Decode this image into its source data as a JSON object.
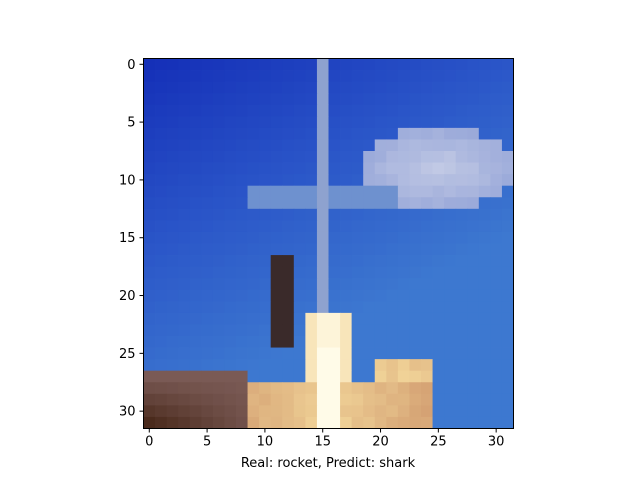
{
  "chart_data": {
    "type": "heatmap",
    "title": "",
    "xlabel": "Real: rocket, Predict: shark",
    "ylabel": "",
    "grid": false,
    "x_ticks": [
      0,
      5,
      10,
      15,
      20,
      25,
      30
    ],
    "y_ticks": [
      0,
      5,
      10,
      15,
      20,
      25,
      30
    ],
    "x_range": [
      -0.5,
      31.5
    ],
    "y_range": [
      -0.5,
      31.5
    ],
    "y_inverted": true,
    "image_grid": [
      32,
      32
    ],
    "description_of_pixels": "low-resolution image of a rocket launch against blue sky",
    "palette": {
      "sky_deep": "#1530b8",
      "sky_mid": "#2a55c8",
      "sky_light": "#3d78d0",
      "cloud": "#c6cde6",
      "cloud_shadow": "#8fa0d6",
      "contrail": "#8ea2cf",
      "rocket_dark": "#3a2a2a",
      "flame_white": "#fffbe8",
      "flame_yellow": "#f3d79b",
      "flame_tan": "#d8a878",
      "ground_dark": "#4a2a1c",
      "ground_brown": "#7a5a55"
    }
  }
}
